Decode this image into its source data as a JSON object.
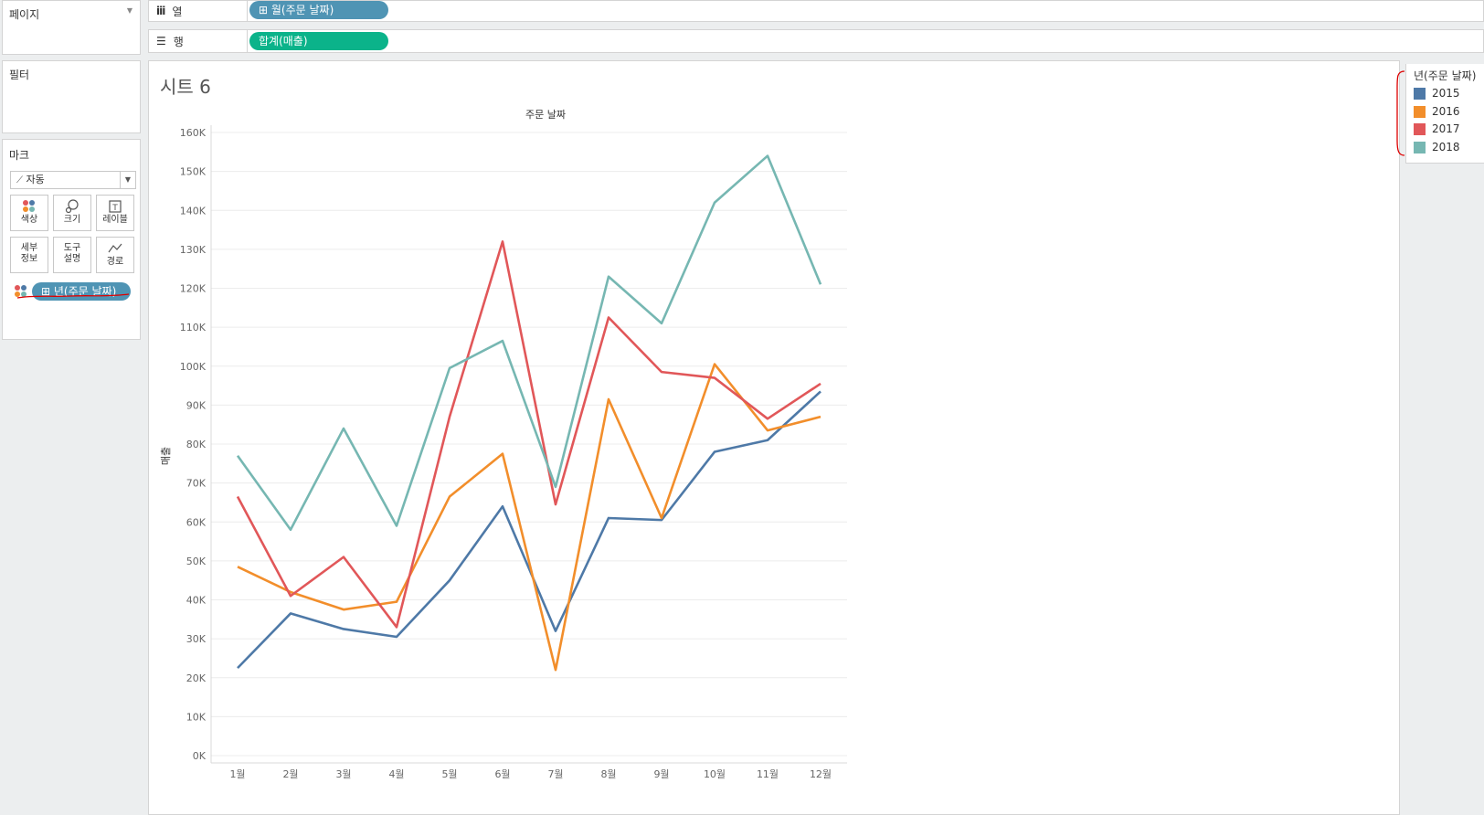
{
  "pages": {
    "title": "페이지"
  },
  "filters": {
    "title": "필터"
  },
  "marks": {
    "title": "마크",
    "type_label": "자동",
    "buttons": [
      {
        "label": "색상",
        "icon": "color-dots-icon"
      },
      {
        "label": "크기",
        "icon": "size-icon"
      },
      {
        "label": "레이블",
        "icon": "label-icon"
      },
      {
        "label": "세부\n정보",
        "icon": "detail-icon"
      },
      {
        "label": "도구\n설명",
        "icon": "tooltip-icon"
      },
      {
        "label": "경로",
        "icon": "path-icon"
      }
    ],
    "color_pill": "⊞ 년(주문 날짜)"
  },
  "shelves": {
    "columns_label": "열",
    "columns_pill": "⊞ 월(주문 날짜)",
    "rows_label": "행",
    "rows_pill": "합계(매출)"
  },
  "sheet": {
    "title": "시트 6"
  },
  "legend": {
    "title": "년(주문 날짜)",
    "items": [
      {
        "label": "2015",
        "color": "#4e79a7"
      },
      {
        "label": "2016",
        "color": "#f28e2b"
      },
      {
        "label": "2017",
        "color": "#e15759"
      },
      {
        "label": "2018",
        "color": "#76b7b2"
      }
    ]
  },
  "chart_data": {
    "type": "line",
    "title": "주문 날짜",
    "xlabel": "",
    "ylabel": "매출",
    "categories": [
      "1월",
      "2월",
      "3월",
      "4월",
      "5월",
      "6월",
      "7월",
      "8월",
      "9월",
      "10월",
      "11월",
      "12월"
    ],
    "y_ticks": [
      "0K",
      "10K",
      "20K",
      "30K",
      "40K",
      "50K",
      "60K",
      "70K",
      "80K",
      "90K",
      "100K",
      "110K",
      "120K",
      "130K",
      "140K",
      "150K",
      "160K"
    ],
    "ylim": [
      0,
      160000
    ],
    "grid": true,
    "legend_position": "right",
    "series": [
      {
        "name": "2015",
        "color": "#4e79a7",
        "values": [
          22500,
          36500,
          32500,
          30500,
          45000,
          64000,
          32000,
          61000,
          60500,
          78000,
          81000,
          93500
        ]
      },
      {
        "name": "2016",
        "color": "#f28e2b",
        "values": [
          48500,
          42000,
          37500,
          39500,
          66500,
          77500,
          22000,
          91500,
          61000,
          100500,
          83500,
          87000
        ]
      },
      {
        "name": "2017",
        "color": "#e15759",
        "values": [
          66500,
          41000,
          51000,
          33000,
          87000,
          132000,
          64500,
          112500,
          98500,
          97000,
          86500,
          95500
        ]
      },
      {
        "name": "2018",
        "color": "#76b7b2",
        "values": [
          77000,
          58000,
          84000,
          59000,
          99500,
          106500,
          69000,
          123000,
          111000,
          142000,
          154000,
          121000
        ]
      }
    ]
  }
}
